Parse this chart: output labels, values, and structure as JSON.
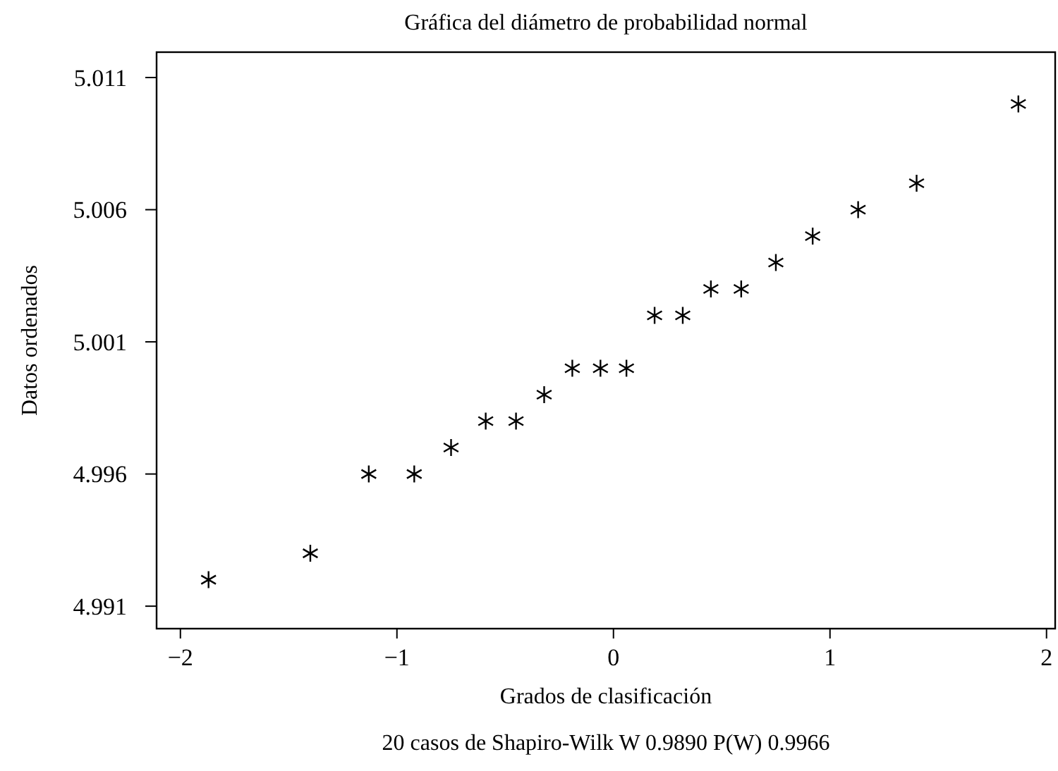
{
  "chart_data": {
    "type": "scatter",
    "title": "Gráfica del diámetro de probabilidad normal",
    "xlabel": "Grados de clasificación",
    "ylabel": "Datos ordenados",
    "annotations": [
      "20 casos de Shapiro-Wilk W 0.9890 P(W) 0.9966"
    ],
    "x": [
      -1.87,
      -1.4,
      -1.13,
      -0.92,
      -0.75,
      -0.59,
      -0.45,
      -0.32,
      -0.19,
      -0.06,
      0.06,
      0.19,
      0.32,
      0.45,
      0.59,
      0.75,
      0.92,
      1.13,
      1.4,
      1.87
    ],
    "values": [
      4.992,
      4.993,
      4.996,
      4.996,
      4.997,
      4.998,
      4.998,
      4.999,
      5.0,
      5.0,
      5.0,
      5.002,
      5.002,
      5.003,
      5.003,
      5.004,
      5.005,
      5.006,
      5.007,
      5.01
    ],
    "color": "#000000",
    "marker": "cross",
    "xlim": [
      -2.11,
      2.04
    ],
    "xticks": [
      {
        "value": -2,
        "label": "−2"
      },
      {
        "value": -1,
        "label": "−1"
      },
      0,
      1,
      2
    ],
    "ylim": [
      4.99015,
      5.01196
    ],
    "yticks": [
      4.991,
      4.996,
      5.001,
      5.006,
      5.011
    ],
    "grid": false
  }
}
